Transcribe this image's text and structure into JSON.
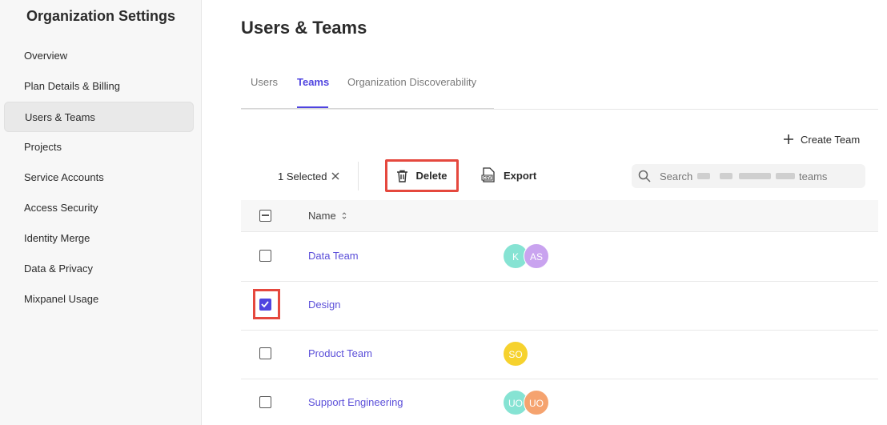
{
  "sidebar": {
    "title": "Organization Settings",
    "items": [
      "Overview",
      "Plan Details & Billing",
      "Users & Teams",
      "Projects",
      "Service Accounts",
      "Access Security",
      "Identity Merge",
      "Data & Privacy",
      "Mixpanel Usage"
    ],
    "active_index": 2
  },
  "header": {
    "title": "Users & Teams"
  },
  "tabs": {
    "items": [
      "Users",
      "Teams",
      "Organization Discoverability"
    ],
    "active_index": 1
  },
  "actions": {
    "create": "Create Team"
  },
  "toolbar": {
    "selected": "1 Selected",
    "delete": "Delete",
    "export": "Export",
    "search_prefix": "Search",
    "search_suffix": "teams"
  },
  "table": {
    "column": "Name",
    "rows": [
      {
        "name": "Data Team",
        "selected": false,
        "members": [
          {
            "initials": "K",
            "color": "#86e3d3"
          },
          {
            "initials": "AS",
            "color": "#c9a3ef"
          }
        ]
      },
      {
        "name": "Design",
        "selected": true,
        "members": []
      },
      {
        "name": "Product Team",
        "selected": false,
        "members": [
          {
            "initials": "SO",
            "color": "#f6d22e"
          }
        ]
      },
      {
        "name": "Support Engineering",
        "selected": false,
        "members": [
          {
            "initials": "UO",
            "color": "#86e3d3"
          },
          {
            "initials": "UO",
            "color": "#f5a36f"
          }
        ]
      }
    ]
  }
}
